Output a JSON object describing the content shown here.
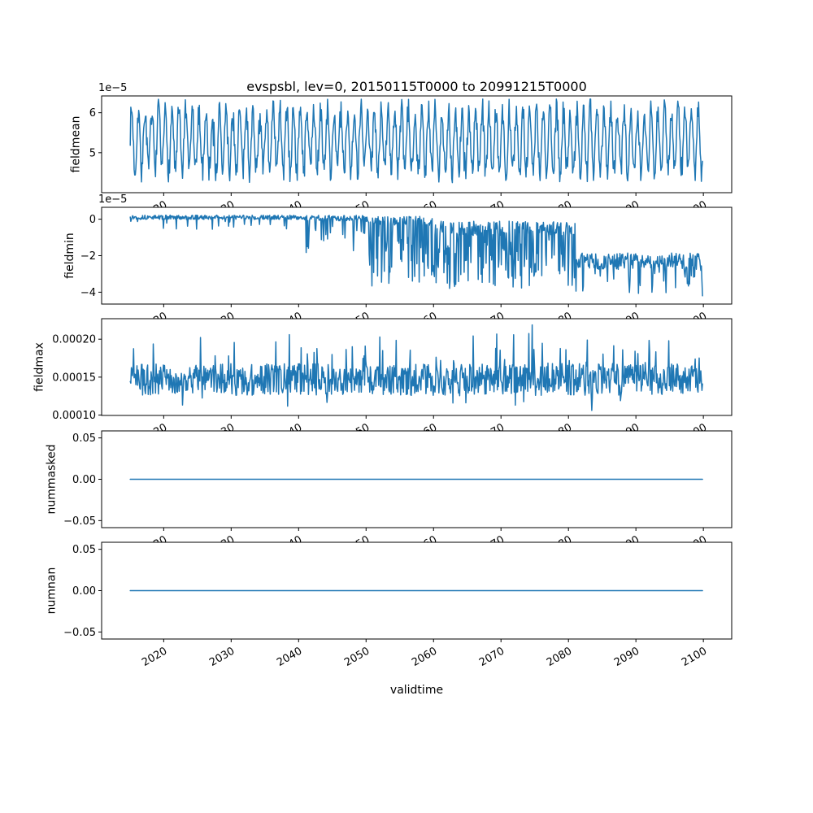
{
  "figure": {
    "title": "evspsbl, lev=0, 20150115T0000 to 20991215T0000",
    "xlabel": "validtime",
    "line_color": "#1f77b4",
    "background": "#ffffff",
    "xticks": {
      "values": [
        2020,
        2030,
        2040,
        2050,
        2060,
        2070,
        2080,
        2090,
        2100
      ],
      "labels": [
        "2020",
        "2030",
        "2040",
        "2050",
        "2060",
        "2070",
        "2080",
        "2090",
        "2100"
      ]
    }
  },
  "chart_data": [
    {
      "type": "line",
      "ylabel": "fieldmean",
      "offset_text": "1e−5",
      "x_start": 2015.042,
      "x_end": 2099.958,
      "points_per_year": 12,
      "xlim": [
        2010.8,
        2104.2
      ],
      "ylim": [
        4e-05,
        6.42e-05
      ],
      "yticks": [
        {
          "value": 5e-05,
          "label": "5"
        },
        {
          "value": 6e-05,
          "label": "6"
        }
      ],
      "series": {
        "name": "fieldmean",
        "model": "seasonal",
        "seed": 7,
        "mean": 5.3e-05,
        "amplitude": 7.5e-06,
        "noise": 3.2e-06
      }
    },
    {
      "type": "line",
      "ylabel": "fieldmin",
      "offset_text": "1e−5",
      "x_start": 2015.042,
      "x_end": 2099.958,
      "points_per_year": 12,
      "xlim": [
        2010.8,
        2104.2
      ],
      "ylim": [
        -4.65e-05,
        6.5e-06
      ],
      "yticks": [
        {
          "value": 0,
          "label": "0"
        },
        {
          "value": -2e-05,
          "label": "−2"
        },
        {
          "value": -4e-05,
          "label": "−4"
        }
      ],
      "series": {
        "name": "fieldmin",
        "model": "collapse",
        "seed": 13,
        "phases": [
          {
            "until": 2040,
            "base": 1e-06,
            "noise": 1.2e-06,
            "spike_p": 0.06,
            "spike_min": 2e-06,
            "spike_max": 7e-06
          },
          {
            "until": 2050,
            "base": 6e-07,
            "noise": 1.5e-06,
            "spike_p": 0.22,
            "spike_min": 4e-06,
            "spike_max": 2.2e-05
          },
          {
            "until": 2060,
            "base": -1e-06,
            "noise": 2.5e-06,
            "spike_p": 0.38,
            "spike_min": 8e-06,
            "spike_max": 3.6e-05
          },
          {
            "until": 2081,
            "base": -5e-06,
            "noise": 4e-06,
            "spike_p": 0.4,
            "spike_min": 6e-06,
            "spike_max": 3.3e-05
          },
          {
            "until": 2101,
            "base": -2.3e-05,
            "noise": 4.5e-06,
            "spike_p": 0.15,
            "spike_min": 5e-06,
            "spike_max": 1.8e-05
          }
        ],
        "end_value": -4.2e-05
      }
    },
    {
      "type": "line",
      "ylabel": "fieldmax",
      "offset_text": null,
      "x_start": 2015.042,
      "x_end": 2099.958,
      "points_per_year": 12,
      "xlim": [
        2010.8,
        2104.2
      ],
      "ylim": [
        9.95e-05,
        0.000227
      ],
      "yticks": [
        {
          "value": 0.0001,
          "label": "0.00010"
        },
        {
          "value": 0.00015,
          "label": "0.00015"
        },
        {
          "value": 0.0002,
          "label": "0.00020"
        }
      ],
      "series": {
        "name": "fieldmax",
        "model": "noisy",
        "seed": 21,
        "base": 0.000147,
        "noise": 2.1e-05,
        "spike_p": 0.08,
        "spike": 5.5e-05,
        "dip_p": 0.05,
        "dip": 2.5e-05,
        "min": 0.000106,
        "max": 0.000224
      }
    },
    {
      "type": "line",
      "ylabel": "nummasked",
      "offset_text": null,
      "x_start": 2015.042,
      "x_end": 2099.958,
      "points_per_year": 12,
      "xlim": [
        2010.8,
        2104.2
      ],
      "ylim": [
        -0.0585,
        0.0585
      ],
      "yticks": [
        {
          "value": 0.05,
          "label": "0.05"
        },
        {
          "value": 0.0,
          "label": "0.00"
        },
        {
          "value": -0.05,
          "label": "−0.05"
        }
      ],
      "series": {
        "name": "nummasked",
        "model": "constant",
        "value": 0
      }
    },
    {
      "type": "line",
      "ylabel": "numnan",
      "offset_text": null,
      "x_start": 2015.042,
      "x_end": 2099.958,
      "points_per_year": 12,
      "xlim": [
        2010.8,
        2104.2
      ],
      "ylim": [
        -0.0585,
        0.0585
      ],
      "yticks": [
        {
          "value": 0.05,
          "label": "0.05"
        },
        {
          "value": 0.0,
          "label": "0.00"
        },
        {
          "value": -0.05,
          "label": "−0.05"
        }
      ],
      "series": {
        "name": "numnan",
        "model": "constant",
        "value": 0
      }
    }
  ]
}
